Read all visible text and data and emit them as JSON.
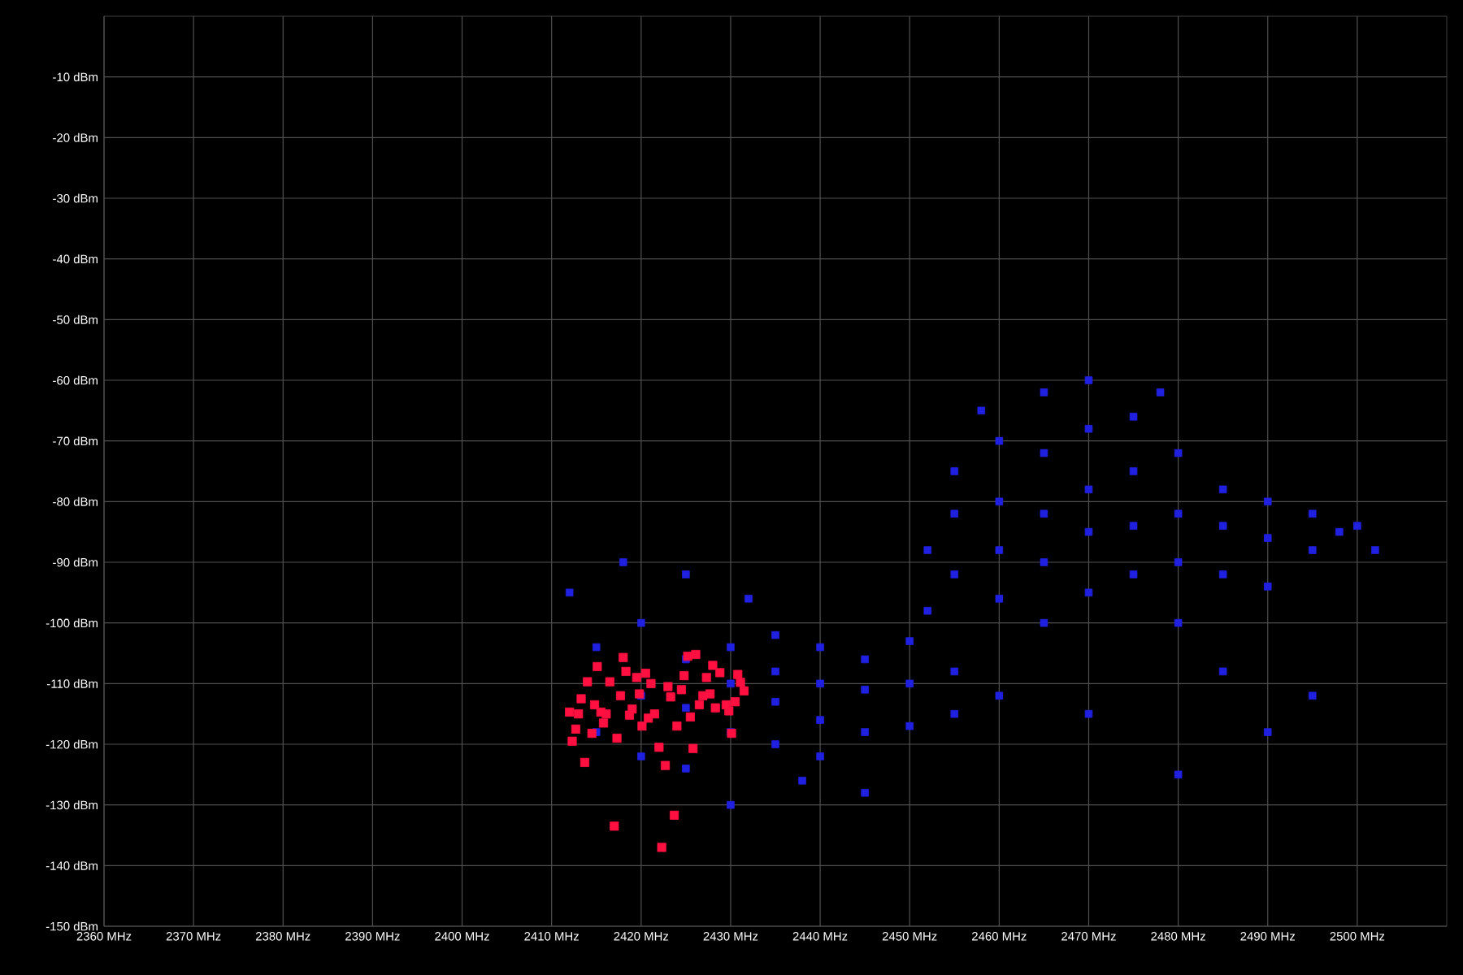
{
  "chart_data": {
    "type": "scatter",
    "marker": "square",
    "grid": true,
    "xlim": [
      2360,
      2510
    ],
    "ylim": [
      -150,
      0
    ],
    "xticks": [
      {
        "value": 2360,
        "label": "2360 MHz"
      },
      {
        "value": 2370,
        "label": "2370 MHz"
      },
      {
        "value": 2380,
        "label": "2380 MHz"
      },
      {
        "value": 2390,
        "label": "2390 MHz"
      },
      {
        "value": 2400,
        "label": "2400 MHz"
      },
      {
        "value": 2410,
        "label": "2410 MHz"
      },
      {
        "value": 2420,
        "label": "2420 MHz"
      },
      {
        "value": 2430,
        "label": "2430 MHz"
      },
      {
        "value": 2440,
        "label": "2440 MHz"
      },
      {
        "value": 2450,
        "label": "2450 MHz"
      },
      {
        "value": 2460,
        "label": "2460 MHz"
      },
      {
        "value": 2470,
        "label": "2470 MHz"
      },
      {
        "value": 2480,
        "label": "2480 MHz"
      },
      {
        "value": 2490,
        "label": "2490 MHz"
      },
      {
        "value": 2500,
        "label": "2500 MHz"
      }
    ],
    "yticks": [
      {
        "value": -10,
        "label": "-10 dBm"
      },
      {
        "value": -20,
        "label": "-20 dBm"
      },
      {
        "value": -30,
        "label": "-30 dBm"
      },
      {
        "value": -40,
        "label": "-40 dBm"
      },
      {
        "value": -50,
        "label": "-50 dBm"
      },
      {
        "value": -60,
        "label": "-60 dBm"
      },
      {
        "value": -70,
        "label": "-70 dBm"
      },
      {
        "value": -80,
        "label": "-80 dBm"
      },
      {
        "value": -90,
        "label": "-90 dBm"
      },
      {
        "value": -100,
        "label": "-100 dBm"
      },
      {
        "value": -110,
        "label": "-110 dBm"
      },
      {
        "value": -120,
        "label": "-120 dBm"
      },
      {
        "value": -130,
        "label": "-130 dBm"
      },
      {
        "value": -140,
        "label": "-140 dBm"
      },
      {
        "value": -150,
        "label": "-150 dBm"
      }
    ],
    "series": [
      {
        "color": "#2020e0",
        "x": [
          2415,
          2415,
          2420,
          2420,
          2420,
          2425,
          2425,
          2425,
          2430,
          2430,
          2430,
          2435,
          2435,
          2435,
          2435,
          2440,
          2440,
          2440,
          2440,
          2445,
          2445,
          2445,
          2450,
          2450,
          2450,
          2455,
          2455,
          2460,
          2412,
          2418,
          2425,
          2432,
          2438,
          2445,
          2430,
          2452,
          2452,
          2455,
          2455,
          2455,
          2458,
          2460,
          2460,
          2460,
          2460,
          2465,
          2465,
          2465,
          2465,
          2465,
          2470,
          2470,
          2470,
          2470,
          2470,
          2475,
          2475,
          2475,
          2475,
          2478,
          2480,
          2480,
          2480,
          2480,
          2485,
          2485,
          2485,
          2490,
          2490,
          2490,
          2495,
          2495,
          2498,
          2485,
          2490,
          2480,
          2470,
          2495,
          2500,
          2502
        ],
        "values": [
          -104,
          -118,
          -100,
          -112,
          -122,
          -106,
          -114,
          -124,
          -104,
          -110,
          -118,
          -102,
          -108,
          -113,
          -120,
          -104,
          -110,
          -116,
          -122,
          -106,
          -111,
          -118,
          -103,
          -110,
          -117,
          -108,
          -115,
          -112,
          -95,
          -90,
          -92,
          -96,
          -126,
          -128,
          -130,
          -88,
          -98,
          -75,
          -82,
          -92,
          -65,
          -70,
          -80,
          -88,
          -96,
          -62,
          -72,
          -82,
          -90,
          -100,
          -60,
          -68,
          -78,
          -85,
          -95,
          -66,
          -75,
          -84,
          -92,
          -62,
          -72,
          -82,
          -90,
          -100,
          -78,
          -84,
          -92,
          -80,
          -86,
          -94,
          -82,
          -88,
          -85,
          -108,
          -118,
          -125,
          -115,
          -112,
          -84,
          -88
        ]
      },
      {
        "color": "#ff1040",
        "x": [
          2415.1,
          2418.0,
          2418.3,
          2414.0,
          2416.5,
          2419.5,
          2420.5,
          2421.1,
          2413.3,
          2417.7,
          2419.8,
          2414.8,
          2412.0,
          2413.0,
          2415.5,
          2416.1,
          2418.7,
          2419.0,
          2420.8,
          2421.5,
          2412.7,
          2414.5,
          2415.8,
          2420.1,
          2412.3,
          2417.3,
          2422.0,
          2413.7,
          2422.7,
          2424.0,
          2423.0,
          2423.3,
          2424.5,
          2424.8,
          2425.2,
          2426.1,
          2428.0,
          2427.3,
          2428.8,
          2430.8,
          2431.1,
          2431.5,
          2426.9,
          2427.7,
          2426.5,
          2428.3,
          2429.5,
          2429.8,
          2430.5,
          2425.5,
          2430.1,
          2425.8,
          2423.7,
          2417.0,
          2422.3
        ],
        "values": [
          -107.2,
          -105.7,
          -108.0,
          -109.7,
          -109.7,
          -109.0,
          -108.3,
          -110.0,
          -112.5,
          -112.0,
          -111.7,
          -113.5,
          -114.7,
          -115.0,
          -114.7,
          -115.0,
          -115.2,
          -114.2,
          -115.7,
          -115.0,
          -117.5,
          -118.2,
          -116.5,
          -117.0,
          -119.5,
          -119.0,
          -120.5,
          -123.0,
          -123.5,
          -117.0,
          -110.5,
          -112.2,
          -111.0,
          -108.7,
          -105.5,
          -105.2,
          -107.0,
          -109.0,
          -108.2,
          -108.5,
          -109.8,
          -111.2,
          -112.0,
          -111.7,
          -113.5,
          -114.0,
          -113.5,
          -114.5,
          -113.0,
          -115.5,
          -118.2,
          -120.7,
          -131.7,
          -133.5,
          -137.0
        ]
      }
    ]
  }
}
